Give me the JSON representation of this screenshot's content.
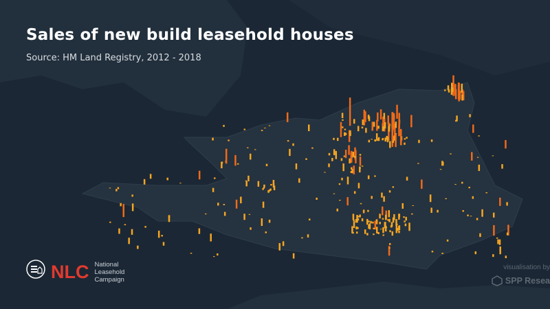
{
  "header": {
    "title": "Sales of new build leasehold houses",
    "subtitle": "Source: HM Land Registry, 2012 - 2018"
  },
  "logo": {
    "abbr": "NLC",
    "name_lines": [
      "National",
      "Leasehold",
      "Campaign"
    ]
  },
  "credit": {
    "label": "visualisation by",
    "name": "SPP Resea"
  }
}
